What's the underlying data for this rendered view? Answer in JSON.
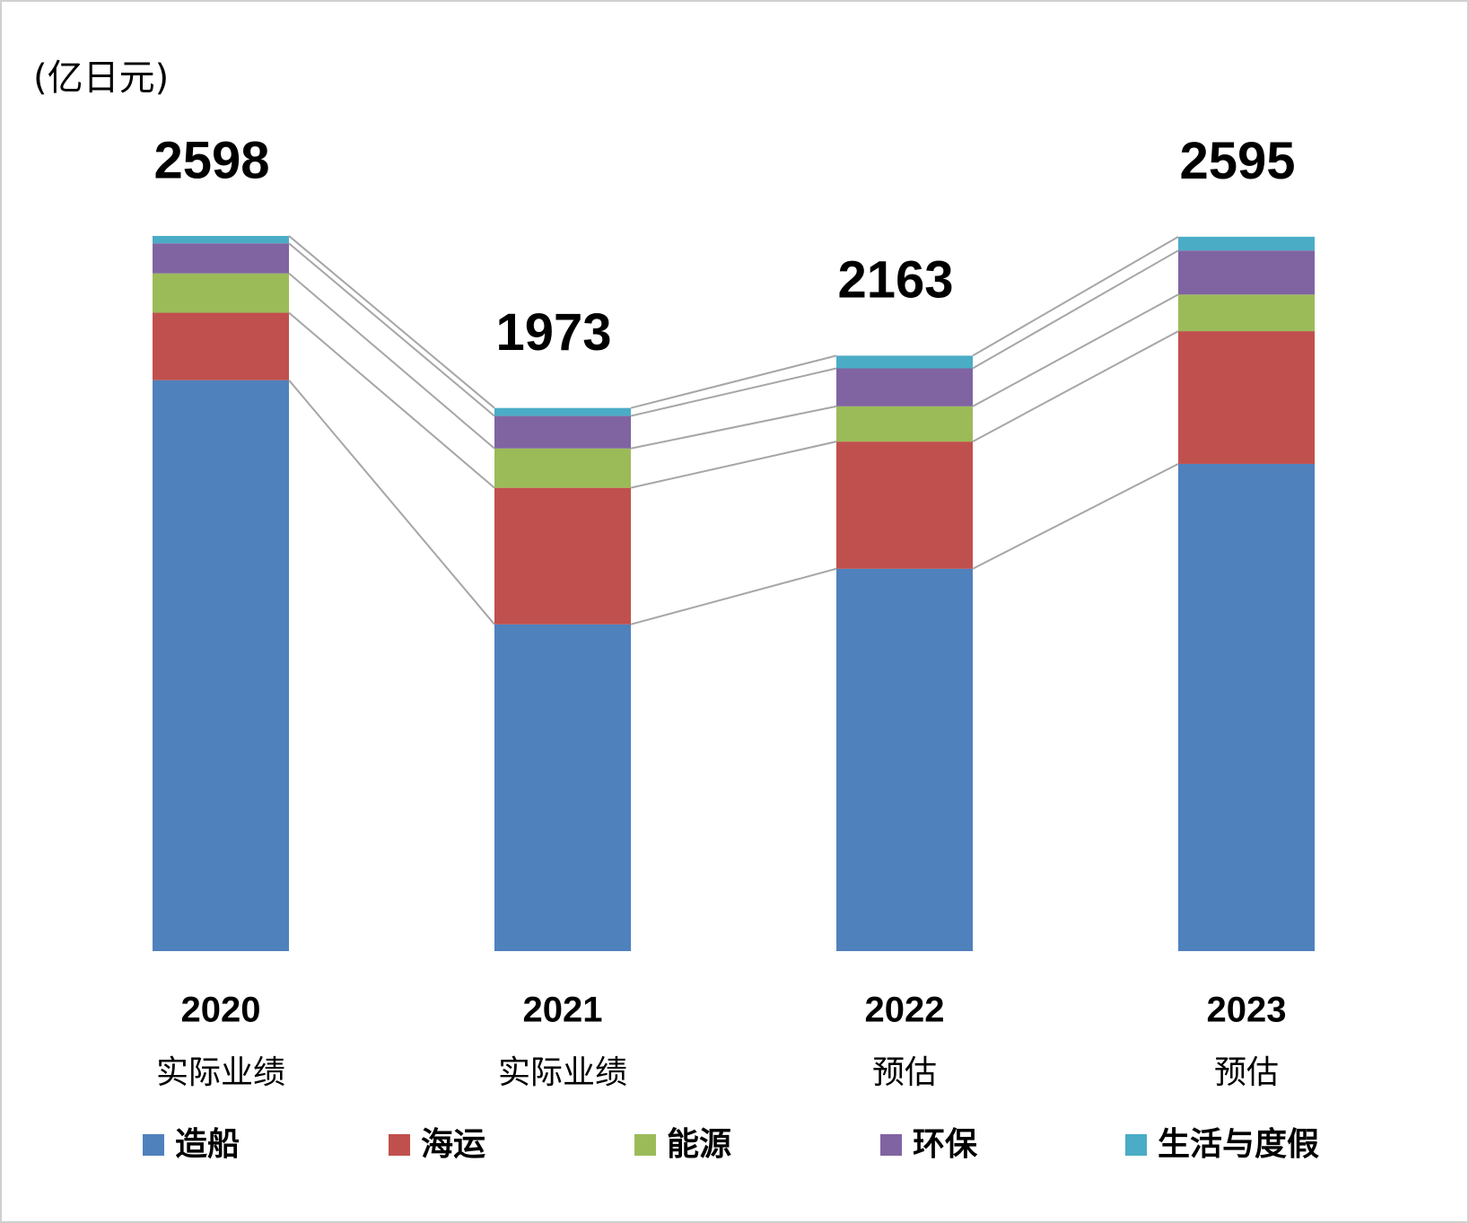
{
  "chart_data": {
    "type": "stacked_bar",
    "unit_label": "(亿日元)",
    "categories": [
      "2020",
      "2021",
      "2022",
      "2023"
    ],
    "sublabels": [
      "实际业绩",
      "实际业绩",
      "预估",
      "预估"
    ],
    "totals": [
      2598,
      1973,
      2163,
      2595
    ],
    "series": [
      {
        "name": "造船",
        "color": "#4f81bd",
        "values": [
          2074,
          1187,
          1389,
          1770
        ]
      },
      {
        "name": "海运",
        "color": "#c0504d",
        "values": [
          245,
          496,
          462,
          482
        ]
      },
      {
        "name": "能源",
        "color": "#9bbb59",
        "values": [
          143,
          143,
          128,
          133
        ]
      },
      {
        "name": "环保",
        "color": "#8064a2",
        "values": [
          109,
          118,
          138,
          160
        ]
      },
      {
        "name": "生活与度假",
        "color": "#4bacc6",
        "values": [
          27,
          29,
          46,
          50
        ]
      }
    ]
  }
}
